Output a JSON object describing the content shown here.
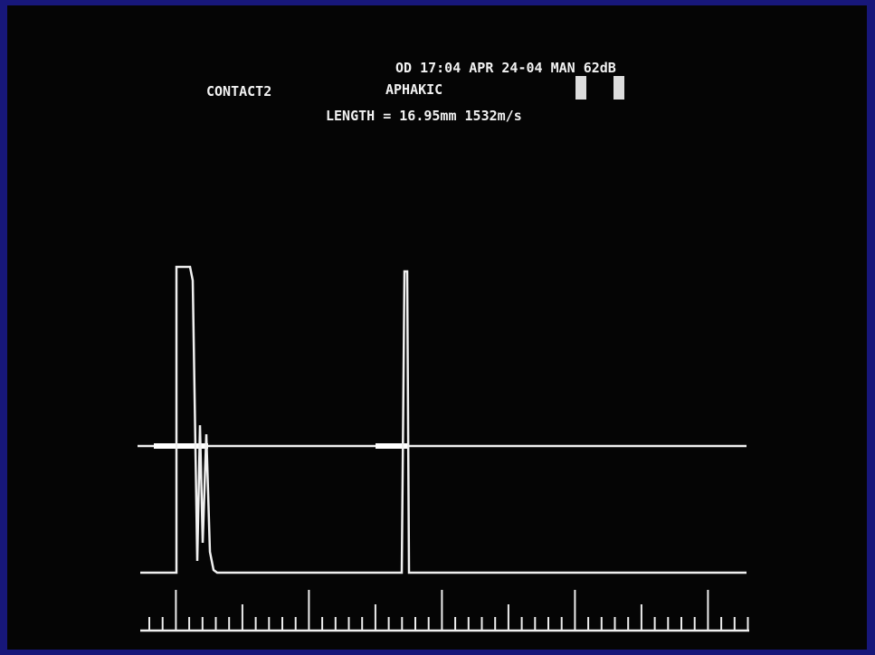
{
  "screen": {
    "status": "OD 17:04 APR 24-04 MAN 62dB",
    "mode": "CONTACT2",
    "lens": "APHAKIC",
    "measurement": "LENGTH = 16.95mm 1532m/s"
  }
}
